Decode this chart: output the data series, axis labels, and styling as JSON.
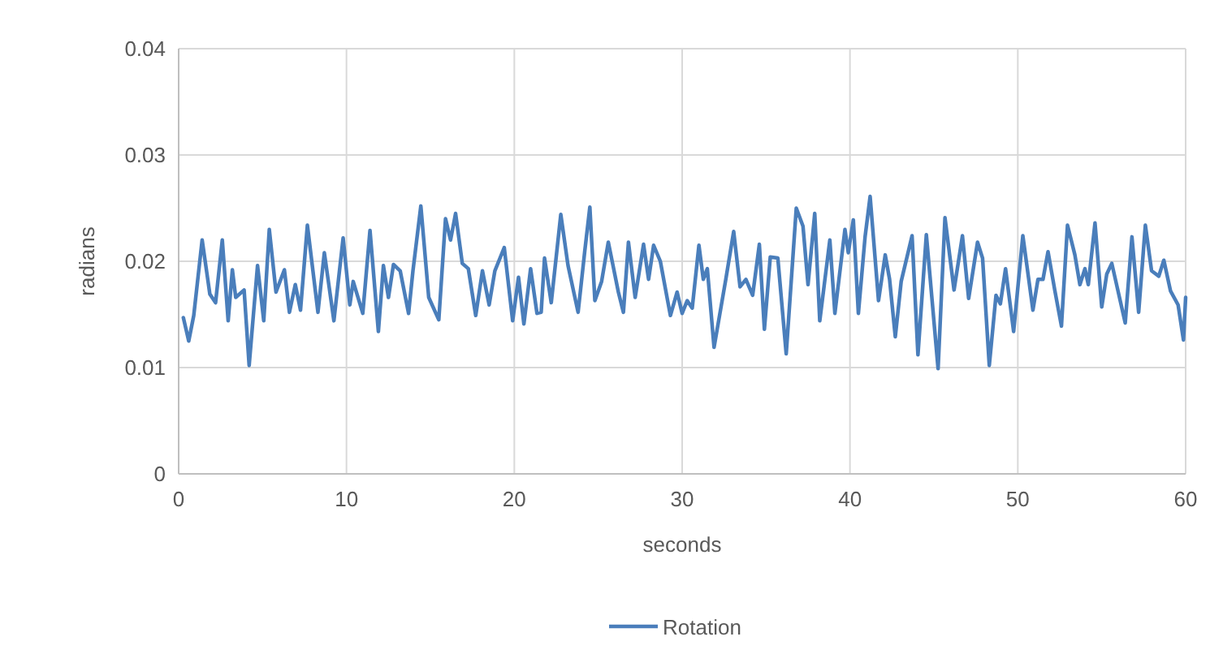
{
  "chart_data": {
    "type": "line",
    "xlabel": "seconds",
    "ylabel": "radians",
    "xlim": [
      0,
      60
    ],
    "xticks": [
      0,
      10,
      20,
      30,
      40,
      50,
      60
    ],
    "ylim": [
      0,
      0.04
    ],
    "yticks": [
      0,
      0.01,
      0.02,
      0.03,
      0.04
    ],
    "grid": true,
    "legend": "bottom",
    "marker": "none",
    "line_style": "solid",
    "series": [
      {
        "name": "Rotation",
        "color": "#4a7ebb",
        "x": [
          0.28,
          0.6,
          0.9,
          1.4,
          1.86,
          2.2,
          2.6,
          2.95,
          3.2,
          3.4,
          3.9,
          4.2,
          4.7,
          5.07,
          5.4,
          5.8,
          6.3,
          6.6,
          6.95,
          7.26,
          7.67,
          8.3,
          8.68,
          9.25,
          9.8,
          10.2,
          10.4,
          10.97,
          11.4,
          11.9,
          12.2,
          12.5,
          12.8,
          13.2,
          13.7,
          13.96,
          14.43,
          14.9,
          15.5,
          15.9,
          16.2,
          16.5,
          16.9,
          17.26,
          17.7,
          18.1,
          18.5,
          18.84,
          19.4,
          19.9,
          20.25,
          20.57,
          20.97,
          21.35,
          21.6,
          21.8,
          22.2,
          22.77,
          23.2,
          23.8,
          24.2,
          24.5,
          24.8,
          25.2,
          25.6,
          26.2,
          26.5,
          26.8,
          27.2,
          27.7,
          28.0,
          28.3,
          28.7,
          29.3,
          29.7,
          30.0,
          30.3,
          30.6,
          31.0,
          31.26,
          31.5,
          31.9,
          32.6,
          33.07,
          33.45,
          33.8,
          34.2,
          34.6,
          34.9,
          35.25,
          35.7,
          36.2,
          36.8,
          37.2,
          37.5,
          37.9,
          38.2,
          38.8,
          39.1,
          39.7,
          39.9,
          40.2,
          40.5,
          40.9,
          41.2,
          41.7,
          42.1,
          42.36,
          42.7,
          43.05,
          43.7,
          44.05,
          44.55,
          45.25,
          45.66,
          46.2,
          46.7,
          47.07,
          47.6,
          47.9,
          48.3,
          48.7,
          48.96,
          49.27,
          49.75,
          50.3,
          50.9,
          51.2,
          51.5,
          51.8,
          52.2,
          52.6,
          52.96,
          53.4,
          53.7,
          54.0,
          54.2,
          54.6,
          55.0,
          55.3,
          55.6,
          56.4,
          56.8,
          57.2,
          57.6,
          57.97,
          58.4,
          58.7,
          59.1,
          59.55,
          59.87,
          60.0
        ],
        "values": [
          0.0147,
          0.0125,
          0.0149,
          0.022,
          0.0169,
          0.0161,
          0.022,
          0.0144,
          0.0192,
          0.0166,
          0.0173,
          0.0102,
          0.0196,
          0.0144,
          0.023,
          0.0171,
          0.0192,
          0.0152,
          0.0178,
          0.0154,
          0.0234,
          0.0152,
          0.0208,
          0.0144,
          0.0222,
          0.0159,
          0.0181,
          0.0151,
          0.0229,
          0.0134,
          0.0196,
          0.0166,
          0.0197,
          0.0191,
          0.0151,
          0.0191,
          0.0252,
          0.0166,
          0.0145,
          0.024,
          0.022,
          0.0245,
          0.0198,
          0.0193,
          0.0149,
          0.0191,
          0.0159,
          0.0191,
          0.0213,
          0.0144,
          0.0185,
          0.0141,
          0.0193,
          0.0151,
          0.0152,
          0.0203,
          0.0161,
          0.0244,
          0.0196,
          0.0152,
          0.021,
          0.0251,
          0.0163,
          0.0181,
          0.0218,
          0.0171,
          0.0152,
          0.0218,
          0.0166,
          0.0216,
          0.0183,
          0.0215,
          0.02,
          0.0149,
          0.0171,
          0.0151,
          0.0163,
          0.0156,
          0.0215,
          0.0183,
          0.0193,
          0.0119,
          0.0183,
          0.0228,
          0.0176,
          0.0183,
          0.0168,
          0.0216,
          0.0136,
          0.0204,
          0.0203,
          0.0113,
          0.025,
          0.0233,
          0.0178,
          0.0245,
          0.0144,
          0.022,
          0.0151,
          0.023,
          0.0208,
          0.0239,
          0.0151,
          0.0223,
          0.0261,
          0.0163,
          0.0206,
          0.0183,
          0.0129,
          0.0181,
          0.0224,
          0.0112,
          0.0225,
          0.0099,
          0.0241,
          0.0173,
          0.0224,
          0.0165,
          0.0218,
          0.0203,
          0.0102,
          0.0168,
          0.016,
          0.0193,
          0.0134,
          0.0224,
          0.0154,
          0.0183,
          0.0183,
          0.0209,
          0.0173,
          0.0139,
          0.0234,
          0.0206,
          0.0178,
          0.0193,
          0.0178,
          0.0236,
          0.0157,
          0.0188,
          0.0198,
          0.0142,
          0.0223,
          0.0152,
          0.0234,
          0.0191,
          0.0186,
          0.0201,
          0.0172,
          0.0159,
          0.0126,
          0.0166
        ]
      }
    ]
  }
}
